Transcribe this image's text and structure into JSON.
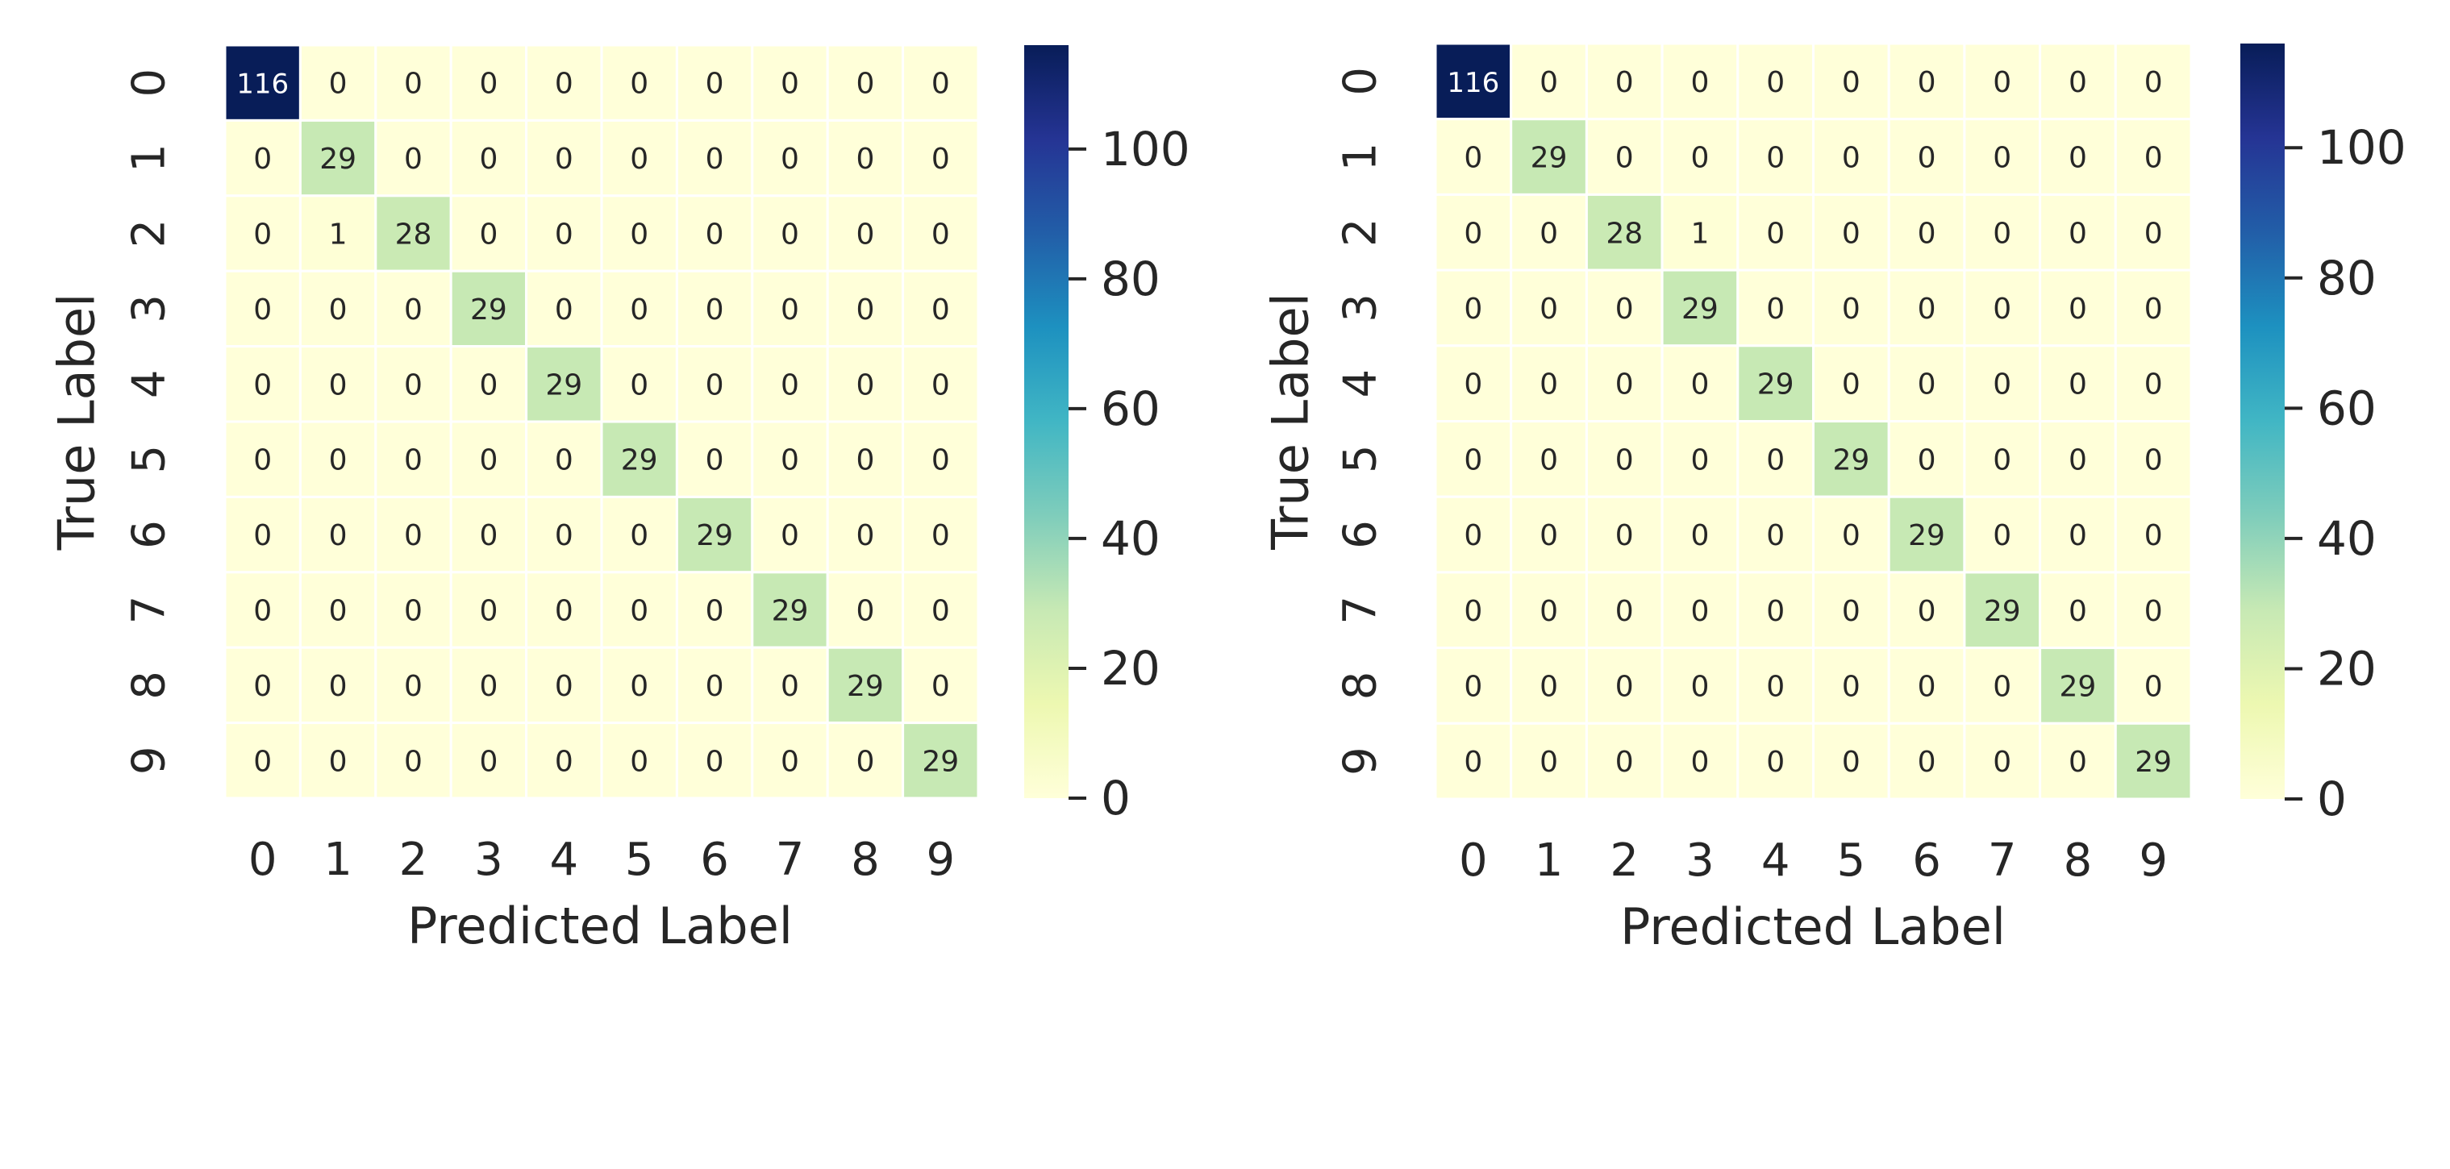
{
  "colorscale": {
    "name": "YlGnBu",
    "stops": [
      [
        0.0,
        "#ffffd9"
      ],
      [
        0.125,
        "#edf8b1"
      ],
      [
        0.25,
        "#c7e9b4"
      ],
      [
        0.375,
        "#7fcdbb"
      ],
      [
        0.5,
        "#41b6c4"
      ],
      [
        0.625,
        "#1d91c0"
      ],
      [
        0.75,
        "#225ea8"
      ],
      [
        0.875,
        "#253494"
      ],
      [
        1.0,
        "#081d58"
      ]
    ]
  },
  "chart_data": [
    {
      "type": "heatmap",
      "xlabel": "Predicted Label",
      "ylabel": "True Label",
      "x": [
        "0",
        "1",
        "2",
        "3",
        "4",
        "5",
        "6",
        "7",
        "8",
        "9"
      ],
      "y": [
        "0",
        "1",
        "2",
        "3",
        "4",
        "5",
        "6",
        "7",
        "8",
        "9"
      ],
      "z": [
        [
          116,
          0,
          0,
          0,
          0,
          0,
          0,
          0,
          0,
          0
        ],
        [
          0,
          29,
          0,
          0,
          0,
          0,
          0,
          0,
          0,
          0
        ],
        [
          0,
          1,
          28,
          0,
          0,
          0,
          0,
          0,
          0,
          0
        ],
        [
          0,
          0,
          0,
          29,
          0,
          0,
          0,
          0,
          0,
          0
        ],
        [
          0,
          0,
          0,
          0,
          29,
          0,
          0,
          0,
          0,
          0
        ],
        [
          0,
          0,
          0,
          0,
          0,
          29,
          0,
          0,
          0,
          0
        ],
        [
          0,
          0,
          0,
          0,
          0,
          0,
          29,
          0,
          0,
          0
        ],
        [
          0,
          0,
          0,
          0,
          0,
          0,
          0,
          29,
          0,
          0
        ],
        [
          0,
          0,
          0,
          0,
          0,
          0,
          0,
          0,
          29,
          0
        ],
        [
          0,
          0,
          0,
          0,
          0,
          0,
          0,
          0,
          0,
          29
        ]
      ],
      "zlim": [
        0,
        116
      ],
      "colorbar_ticks": [
        0,
        20,
        40,
        60,
        80,
        100
      ]
    },
    {
      "type": "heatmap",
      "xlabel": "Predicted Label",
      "ylabel": "True Label",
      "x": [
        "0",
        "1",
        "2",
        "3",
        "4",
        "5",
        "6",
        "7",
        "8",
        "9"
      ],
      "y": [
        "0",
        "1",
        "2",
        "3",
        "4",
        "5",
        "6",
        "7",
        "8",
        "9"
      ],
      "z": [
        [
          116,
          0,
          0,
          0,
          0,
          0,
          0,
          0,
          0,
          0
        ],
        [
          0,
          29,
          0,
          0,
          0,
          0,
          0,
          0,
          0,
          0
        ],
        [
          0,
          0,
          28,
          1,
          0,
          0,
          0,
          0,
          0,
          0
        ],
        [
          0,
          0,
          0,
          29,
          0,
          0,
          0,
          0,
          0,
          0
        ],
        [
          0,
          0,
          0,
          0,
          29,
          0,
          0,
          0,
          0,
          0
        ],
        [
          0,
          0,
          0,
          0,
          0,
          29,
          0,
          0,
          0,
          0
        ],
        [
          0,
          0,
          0,
          0,
          0,
          0,
          29,
          0,
          0,
          0
        ],
        [
          0,
          0,
          0,
          0,
          0,
          0,
          0,
          29,
          0,
          0
        ],
        [
          0,
          0,
          0,
          0,
          0,
          0,
          0,
          0,
          29,
          0
        ],
        [
          0,
          0,
          0,
          0,
          0,
          0,
          0,
          0,
          0,
          29
        ]
      ],
      "zlim": [
        0,
        116
      ],
      "colorbar_ticks": [
        0,
        20,
        40,
        60,
        80,
        100
      ]
    }
  ]
}
